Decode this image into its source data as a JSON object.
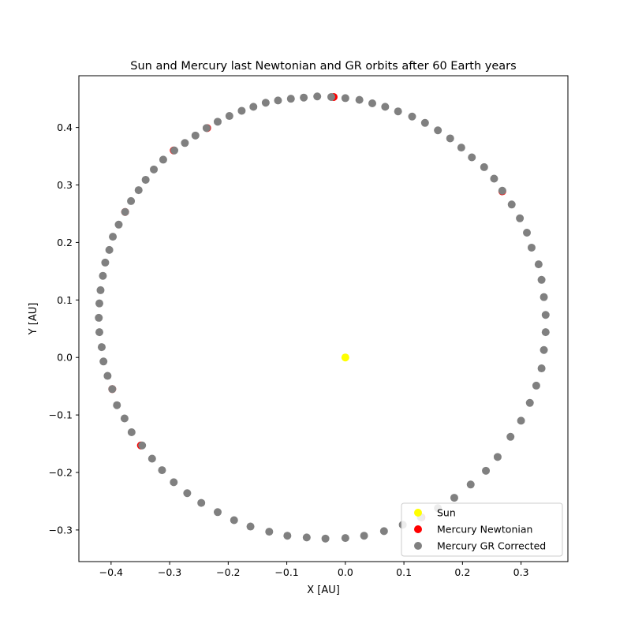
{
  "chart_data": {
    "type": "scatter",
    "title": "Sun and Mercury last Newtonian and GR orbits after 60 Earth years",
    "xlabel": "X [AU]",
    "ylabel": "Y [AU]",
    "xlim": [
      -0.455,
      0.38
    ],
    "ylim": [
      -0.355,
      0.49
    ],
    "xticks": [
      -0.4,
      -0.3,
      -0.2,
      -0.1,
      0.0,
      0.1,
      0.2,
      0.3
    ],
    "yticks": [
      -0.3,
      -0.2,
      -0.1,
      0.0,
      0.1,
      0.2,
      0.3,
      0.4
    ],
    "xtick_labels": [
      "−0.4",
      "−0.3",
      "−0.2",
      "−0.1",
      "0.0",
      "0.1",
      "0.2",
      "0.3"
    ],
    "ytick_labels": [
      "−0.3",
      "−0.2",
      "−0.1",
      "0.0",
      "0.1",
      "0.2",
      "0.3",
      "0.4"
    ],
    "grid": false,
    "legend_position": "bottom-right",
    "series": [
      {
        "name": "Sun",
        "color": "#ffff00",
        "points": [
          [
            0.0,
            0.0
          ]
        ]
      },
      {
        "name": "Mercury Newtonian",
        "color": "#ff0000",
        "points": [
          [
            -0.02,
            0.453
          ],
          [
            -0.236,
            0.399
          ],
          [
            -0.293,
            0.36
          ],
          [
            0.268,
            0.289
          ],
          [
            -0.376,
            0.253
          ],
          [
            -0.398,
            -0.055
          ],
          [
            -0.349,
            -0.153
          ],
          [
            0.13,
            -0.278
          ]
        ]
      },
      {
        "name": "Mercury GR Corrected",
        "color": "#808080",
        "points": [
          [
            0.0,
            0.451
          ],
          [
            0.024,
            0.448
          ],
          [
            0.046,
            0.442
          ],
          [
            0.068,
            0.436
          ],
          [
            0.09,
            0.428
          ],
          [
            0.114,
            0.419
          ],
          [
            0.136,
            0.408
          ],
          [
            0.158,
            0.395
          ],
          [
            0.179,
            0.381
          ],
          [
            0.198,
            0.365
          ],
          [
            0.216,
            0.348
          ],
          [
            0.237,
            0.331
          ],
          [
            0.254,
            0.311
          ],
          [
            0.268,
            0.29
          ],
          [
            0.284,
            0.266
          ],
          [
            0.298,
            0.242
          ],
          [
            0.31,
            0.217
          ],
          [
            0.318,
            0.191
          ],
          [
            0.33,
            0.162
          ],
          [
            0.335,
            0.135
          ],
          [
            0.339,
            0.105
          ],
          [
            0.342,
            0.074
          ],
          [
            0.342,
            0.044
          ],
          [
            0.339,
            0.013
          ],
          [
            0.335,
            -0.019
          ],
          [
            0.326,
            -0.049
          ],
          [
            0.315,
            -0.079
          ],
          [
            0.3,
            -0.11
          ],
          [
            0.282,
            -0.138
          ],
          [
            0.26,
            -0.173
          ],
          [
            0.24,
            -0.197
          ],
          [
            0.214,
            -0.221
          ],
          [
            0.186,
            -0.244
          ],
          [
            0.158,
            -0.262
          ],
          [
            0.129,
            -0.278
          ],
          [
            0.098,
            -0.291
          ],
          [
            0.066,
            -0.302
          ],
          [
            0.032,
            -0.31
          ],
          [
            0.0,
            -0.314
          ],
          [
            -0.034,
            -0.315
          ],
          [
            -0.066,
            -0.313
          ],
          [
            -0.099,
            -0.31
          ],
          [
            -0.13,
            -0.303
          ],
          [
            -0.162,
            -0.294
          ],
          [
            -0.19,
            -0.283
          ],
          [
            -0.218,
            -0.269
          ],
          [
            -0.246,
            -0.253
          ],
          [
            -0.27,
            -0.236
          ],
          [
            -0.293,
            -0.217
          ],
          [
            -0.313,
            -0.196
          ],
          [
            -0.33,
            -0.176
          ],
          [
            -0.347,
            -0.153
          ],
          [
            -0.365,
            -0.13
          ],
          [
            -0.377,
            -0.106
          ],
          [
            -0.39,
            -0.083
          ],
          [
            -0.398,
            -0.055
          ],
          [
            -0.406,
            -0.032
          ],
          [
            -0.413,
            -0.007
          ],
          [
            -0.416,
            0.018
          ],
          [
            -0.42,
            0.044
          ],
          [
            -0.421,
            0.069
          ],
          [
            -0.42,
            0.094
          ],
          [
            -0.418,
            0.117
          ],
          [
            -0.414,
            0.142
          ],
          [
            -0.41,
            0.165
          ],
          [
            -0.403,
            0.187
          ],
          [
            -0.397,
            0.21
          ],
          [
            -0.387,
            0.231
          ],
          [
            -0.376,
            0.253
          ],
          [
            -0.366,
            0.272
          ],
          [
            -0.353,
            0.291
          ],
          [
            -0.341,
            0.309
          ],
          [
            -0.327,
            0.327
          ],
          [
            -0.311,
            0.344
          ],
          [
            -0.292,
            0.36
          ],
          [
            -0.274,
            0.373
          ],
          [
            -0.256,
            0.386
          ],
          [
            -0.237,
            0.399
          ],
          [
            -0.218,
            0.41
          ],
          [
            -0.198,
            0.42
          ],
          [
            -0.177,
            0.429
          ],
          [
            -0.157,
            0.436
          ],
          [
            -0.136,
            0.443
          ],
          [
            -0.115,
            0.447
          ],
          [
            -0.093,
            0.45
          ],
          [
            -0.071,
            0.452
          ],
          [
            -0.048,
            0.454
          ],
          [
            -0.024,
            0.453
          ]
        ]
      }
    ]
  }
}
